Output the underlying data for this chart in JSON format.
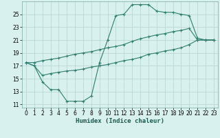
{
  "xlabel": "Humidex (Indice chaleur)",
  "bg_color": "#d8f0ee",
  "grid_color": "#b8d8d4",
  "line_color": "#2e7d6e",
  "xlim": [
    -0.5,
    23.5
  ],
  "ylim": [
    10.5,
    27
  ],
  "xticks": [
    0,
    1,
    2,
    3,
    4,
    5,
    6,
    7,
    8,
    9,
    10,
    11,
    12,
    13,
    14,
    15,
    16,
    17,
    18,
    19,
    20,
    21,
    22,
    23
  ],
  "yticks": [
    11,
    13,
    15,
    17,
    19,
    21,
    23,
    25
  ],
  "line1_x": [
    0,
    1,
    2,
    3,
    4,
    5,
    6,
    7,
    8,
    9,
    10,
    11,
    12,
    13,
    14,
    15,
    16,
    17,
    18,
    19,
    20,
    21,
    22,
    23
  ],
  "line1_y": [
    17.5,
    17.0,
    14.5,
    13.3,
    13.3,
    11.5,
    11.5,
    11.5,
    12.3,
    17.5,
    21.0,
    24.8,
    25.0,
    26.5,
    26.5,
    26.5,
    25.5,
    25.3,
    25.3,
    25.0,
    24.8,
    21.3,
    21.0,
    21.0
  ],
  "line2_x": [
    0,
    1,
    2,
    3,
    4,
    5,
    6,
    7,
    8,
    9,
    10,
    11,
    12,
    13,
    14,
    15,
    16,
    17,
    18,
    19,
    20,
    21,
    22,
    23
  ],
  "line2_y": [
    17.5,
    17.5,
    17.8,
    18.0,
    18.2,
    18.5,
    18.8,
    19.0,
    19.2,
    19.5,
    19.8,
    20.0,
    20.3,
    20.8,
    21.2,
    21.5,
    21.8,
    22.0,
    22.3,
    22.5,
    22.8,
    21.0,
    21.0,
    21.0
  ],
  "line3_x": [
    0,
    1,
    2,
    3,
    4,
    5,
    6,
    7,
    8,
    9,
    10,
    11,
    12,
    13,
    14,
    15,
    16,
    17,
    18,
    19,
    20,
    21,
    22,
    23
  ],
  "line3_y": [
    17.5,
    17.0,
    15.5,
    15.8,
    16.0,
    16.2,
    16.3,
    16.5,
    16.8,
    17.0,
    17.2,
    17.5,
    17.8,
    18.0,
    18.3,
    18.8,
    19.0,
    19.3,
    19.5,
    19.8,
    20.3,
    21.0,
    21.0,
    21.0
  ]
}
